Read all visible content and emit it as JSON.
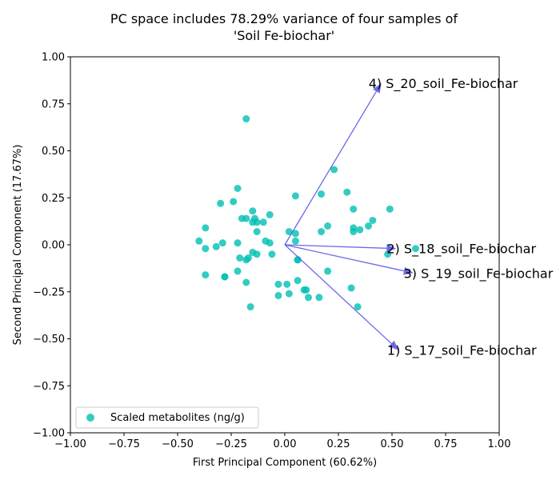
{
  "chart_data": {
    "type": "scatter",
    "title_lines": [
      "PC space includes 78.29% variance of four samples of",
      "'Soil Fe-biochar'"
    ],
    "xlabel": "First Principal Component (60.62%)",
    "ylabel": "Second Principal Component (17.67%)",
    "xlim": [
      -1.0,
      1.0
    ],
    "ylim": [
      -1.0,
      1.0
    ],
    "xticks": [
      "−1.00",
      "−0.75",
      "−0.50",
      "−0.25",
      "0.00",
      "0.25",
      "0.50",
      "0.75",
      "1.00"
    ],
    "yticks": [
      "−1.00",
      "−0.75",
      "−0.50",
      "−0.25",
      "0.00",
      "0.25",
      "0.50",
      "0.75",
      "1.00"
    ],
    "grid": false,
    "legend_position": "lower-left",
    "point_color": "#00bfb3",
    "arrow_color": "#5a5ae6",
    "series": [
      {
        "name": "Scaled metabolites (ng/g)",
        "points": [
          [
            -0.18,
            0.67
          ],
          [
            0.23,
            0.4
          ],
          [
            -0.22,
            0.3
          ],
          [
            0.05,
            0.26
          ],
          [
            0.17,
            0.27
          ],
          [
            0.29,
            0.28
          ],
          [
            -0.3,
            0.22
          ],
          [
            -0.24,
            0.23
          ],
          [
            0.32,
            0.19
          ],
          [
            0.49,
            0.19
          ],
          [
            -0.15,
            0.18
          ],
          [
            -0.07,
            0.16
          ],
          [
            -0.2,
            0.14
          ],
          [
            -0.18,
            0.14
          ],
          [
            -0.14,
            0.14
          ],
          [
            -0.15,
            0.12
          ],
          [
            -0.13,
            0.12
          ],
          [
            -0.1,
            0.12
          ],
          [
            0.41,
            0.13
          ],
          [
            0.39,
            0.1
          ],
          [
            0.2,
            0.1
          ],
          [
            0.32,
            0.09
          ],
          [
            0.35,
            0.08
          ],
          [
            0.32,
            0.07
          ],
          [
            -0.37,
            0.09
          ],
          [
            0.02,
            0.07
          ],
          [
            0.05,
            0.06
          ],
          [
            0.17,
            0.07
          ],
          [
            -0.13,
            0.07
          ],
          [
            -0.4,
            0.02
          ],
          [
            -0.29,
            0.01
          ],
          [
            -0.22,
            0.01
          ],
          [
            -0.09,
            0.02
          ],
          [
            -0.07,
            0.01
          ],
          [
            0.05,
            0.02
          ],
          [
            -0.37,
            -0.02
          ],
          [
            -0.32,
            -0.01
          ],
          [
            -0.15,
            -0.04
          ],
          [
            -0.13,
            -0.05
          ],
          [
            -0.06,
            -0.05
          ],
          [
            -0.21,
            -0.07
          ],
          [
            -0.17,
            -0.07
          ],
          [
            -0.18,
            -0.08
          ],
          [
            0.06,
            -0.08
          ],
          [
            0.06,
            -0.08
          ],
          [
            0.48,
            -0.05
          ],
          [
            0.61,
            -0.02
          ],
          [
            -0.37,
            -0.16
          ],
          [
            -0.28,
            -0.17
          ],
          [
            -0.28,
            -0.17
          ],
          [
            -0.22,
            -0.14
          ],
          [
            0.2,
            -0.14
          ],
          [
            -0.18,
            -0.2
          ],
          [
            0.06,
            -0.19
          ],
          [
            -0.03,
            -0.21
          ],
          [
            0.01,
            -0.21
          ],
          [
            0.31,
            -0.23
          ],
          [
            0.1,
            -0.24
          ],
          [
            0.09,
            -0.24
          ],
          [
            -0.03,
            -0.27
          ],
          [
            0.02,
            -0.26
          ],
          [
            0.11,
            -0.28
          ],
          [
            0.16,
            -0.28
          ],
          [
            0.34,
            -0.33
          ],
          [
            -0.16,
            -0.33
          ]
        ]
      }
    ],
    "loadings": [
      {
        "label": "1) S_17_soil_Fe-biochar",
        "x": 0.53,
        "y": -0.56
      },
      {
        "label": "2) S_18_soil_Fe-biochar",
        "x": 0.52,
        "y": -0.02
      },
      {
        "label": "3) S_19_soil_Fe-biochar",
        "x": 0.6,
        "y": -0.15
      },
      {
        "label": "4) S_20_soil_Fe-biochar",
        "x": 0.45,
        "y": 0.86
      }
    ]
  }
}
